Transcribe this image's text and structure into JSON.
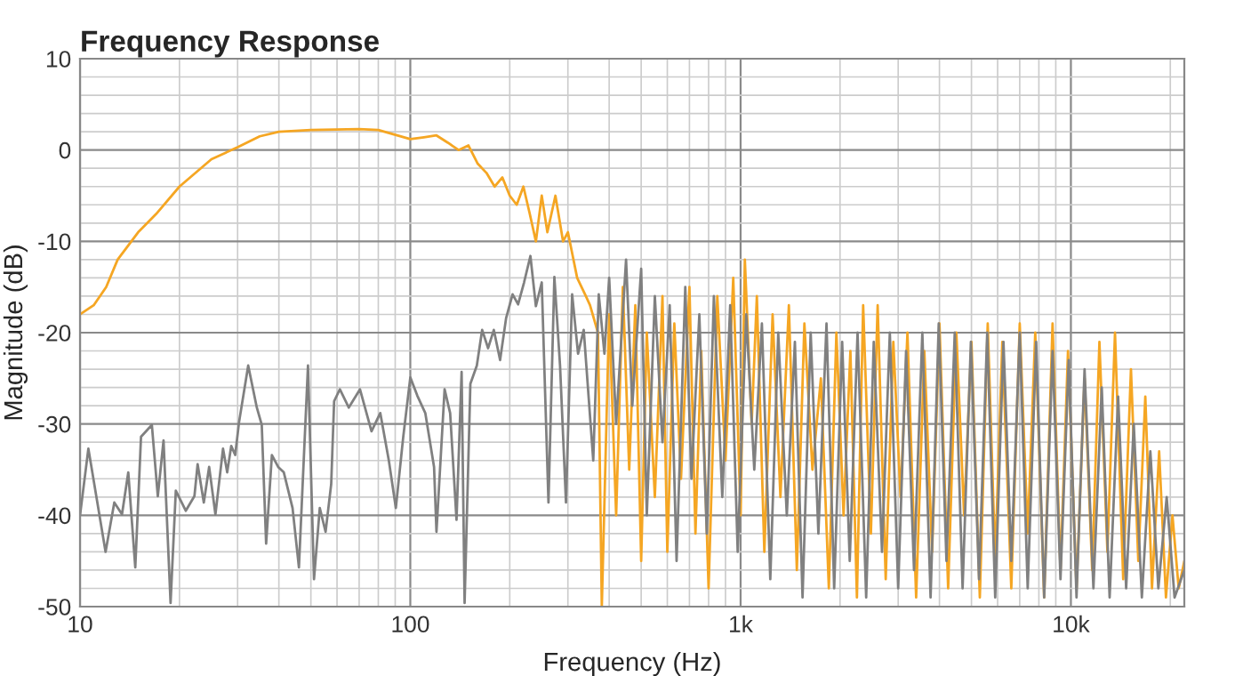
{
  "chart_data": {
    "type": "line",
    "title": "Frequency Response",
    "xlabel": "Frequency (Hz)",
    "ylabel": "Magnitude (dB)",
    "log": "x",
    "grid": true,
    "marker": "none",
    "line_style": "solid",
    "xlim": [
      10,
      22050
    ],
    "xticks": [
      10,
      100,
      {
        "value": 1000,
        "label": "1k"
      },
      {
        "value": 10000,
        "label": "10k"
      }
    ],
    "ylim": [
      -50,
      10
    ],
    "yticks": [
      -50,
      -40,
      -30,
      -20,
      -10,
      0,
      10
    ],
    "series": [
      {
        "color": "#f5a623",
        "x": [
          10,
          11,
          12,
          13,
          15,
          17,
          20,
          25,
          30,
          35,
          40,
          50,
          70,
          80,
          100,
          110,
          120,
          130,
          140,
          150,
          160,
          170,
          180,
          190,
          200,
          210,
          220,
          230,
          240,
          250,
          260,
          275,
          290,
          300,
          320,
          340,
          350,
          370,
          380,
          400,
          420,
          440,
          460,
          480,
          500,
          520,
          550,
          580,
          600,
          630,
          660,
          700,
          730,
          760,
          800,
          850,
          900,
          950,
          1000,
          1030,
          1080,
          1120,
          1180,
          1250,
          1320,
          1400,
          1480,
          1560,
          1650,
          1750,
          1850,
          1950,
          2050,
          2150,
          2250,
          2350,
          2480,
          2600,
          2750,
          2900,
          3050,
          3200,
          3400,
          3600,
          3800,
          4000,
          4250,
          4500,
          4750,
          5000,
          5300,
          5600,
          5900,
          6200,
          6600,
          7000,
          7400,
          7800,
          8300,
          8800,
          9300,
          9800,
          10400,
          11000,
          11600,
          12200,
          12900,
          13600,
          14400,
          15200,
          16000,
          16800,
          17600,
          18500,
          19400,
          20300,
          21200,
          22050
        ],
        "values": [
          -18,
          -17,
          -15,
          -12,
          -9,
          -7,
          -4,
          -1,
          0.3,
          1.5,
          2,
          2.2,
          2.3,
          2.2,
          1.2,
          1.4,
          1.6,
          0.8,
          0,
          0.5,
          -1.5,
          -2.5,
          -4,
          -3,
          -5,
          -6,
          -4,
          -7,
          -10,
          -5,
          -9,
          -5,
          -10,
          -9,
          -14,
          -16,
          -17,
          -20,
          -50,
          -18,
          -40,
          -15,
          -35,
          -17,
          -45,
          -20,
          -38,
          -16,
          -44,
          -19,
          -36,
          -15,
          -42,
          -22,
          -48,
          -16,
          -34,
          -14,
          -40,
          -12,
          -30,
          -16,
          -44,
          -18,
          -38,
          -17,
          -46,
          -19,
          -35,
          -25,
          -48,
          -20,
          -40,
          -22,
          -49,
          -17,
          -42,
          -17,
          -47,
          -21,
          -38,
          -20,
          -49,
          -22,
          -44,
          -19,
          -48,
          -20,
          -40,
          -21,
          -49,
          -19,
          -45,
          -21,
          -48,
          -19,
          -42,
          -20,
          -49,
          -19,
          -46,
          -22,
          -48,
          -25,
          -46,
          -21,
          -44,
          -20,
          -47,
          -24,
          -45,
          -27,
          -48,
          -33,
          -49,
          -40,
          -48,
          -45
        ]
      },
      {
        "color": "#808080",
        "x": [
          10,
          10.6,
          11.95,
          12.7,
          13.4,
          14,
          14.7,
          15.3,
          16.5,
          17.2,
          17.9,
          18.8,
          19.5,
          20.9,
          22.2,
          22.7,
          23.7,
          24.6,
          25.7,
          27.1,
          27.9,
          28.7,
          29.5,
          30.3,
          32.3,
          34.3,
          35.5,
          36.6,
          38.1,
          39.8,
          41.4,
          44,
          46,
          49,
          51.1,
          53.2,
          55.4,
          57.6,
          58.8,
          61.2,
          65.1,
          70.4,
          76.3,
          81.1,
          86.1,
          90.4,
          95.2,
          100,
          105,
          111,
          118,
          120,
          127,
          132,
          138,
          143,
          146,
          152,
          159,
          165,
          172,
          179,
          187,
          195,
          204,
          212,
          221,
          231,
          240,
          250,
          262,
          273,
          284,
          296,
          309,
          322,
          335,
          358,
          372,
          387,
          400,
          420,
          450,
          470,
          500,
          520,
          550,
          580,
          610,
          640,
          680,
          710,
          750,
          790,
          830,
          880,
          930,
          980,
          1040,
          1100,
          1160,
          1230,
          1300,
          1380,
          1460,
          1540,
          1630,
          1720,
          1820,
          1920,
          2030,
          2140,
          2260,
          2400,
          2530,
          2680,
          2830,
          3000,
          3170,
          3350,
          3550,
          3760,
          3980,
          4200,
          4450,
          4700,
          4980,
          5270,
          5580,
          5900,
          6250,
          6600,
          7000,
          7400,
          7850,
          8300,
          8800,
          9300,
          9850,
          10400,
          11000,
          11700,
          12400,
          13100,
          13900,
          14700,
          15500,
          16400,
          17400,
          18400,
          19500,
          20600,
          22050
        ],
        "values": [
          -40,
          -32.7,
          -44,
          -38.6,
          -39.9,
          -35.3,
          -45.7,
          -31.4,
          -30.1,
          -37.9,
          -31.8,
          -49.6,
          -37.3,
          -39.5,
          -37.9,
          -34.4,
          -38.6,
          -34.7,
          -39.9,
          -32.7,
          -35.3,
          -32.4,
          -33.4,
          -29.8,
          -23.6,
          -28.2,
          -30.1,
          -43.1,
          -33.4,
          -34.7,
          -35.3,
          -39.2,
          -45.7,
          -23.6,
          -47,
          -39.2,
          -41.8,
          -36.6,
          -27.5,
          -26.2,
          -28.2,
          -26.2,
          -30.8,
          -28.8,
          -34,
          -39.2,
          -31.4,
          -24.9,
          -26.9,
          -28.8,
          -34.7,
          -41.8,
          -26.2,
          -28.8,
          -40.5,
          -24.3,
          -49.6,
          -25.6,
          -23.6,
          -19.7,
          -21.7,
          -19.7,
          -23,
          -18.4,
          -15.8,
          -16.9,
          -14.5,
          -11.6,
          -17.1,
          -14.5,
          -38.6,
          -13.9,
          -23.6,
          -38.6,
          -15.8,
          -22.3,
          -19.7,
          -34,
          -15.8,
          -22.3,
          -14,
          -30,
          -12,
          -28,
          -13,
          -40,
          -16,
          -32,
          -17,
          -45,
          -15,
          -36,
          -18,
          -42,
          -16,
          -38,
          -17,
          -44,
          -18,
          -35,
          -19,
          -47,
          -20,
          -40,
          -21,
          -49,
          -20,
          -42,
          -19,
          -48,
          -21,
          -45,
          -20,
          -49,
          -21,
          -44,
          -20,
          -48,
          -22,
          -46,
          -20,
          -49,
          -19,
          -45,
          -20,
          -48,
          -21,
          -47,
          -20,
          -49,
          -21,
          -45,
          -20,
          -48,
          -21,
          -49,
          -22,
          -47,
          -23,
          -49,
          -24,
          -48,
          -26,
          -49,
          -27,
          -48,
          -30,
          -49,
          -33,
          -48,
          -38,
          -49,
          -46
        ]
      }
    ]
  }
}
